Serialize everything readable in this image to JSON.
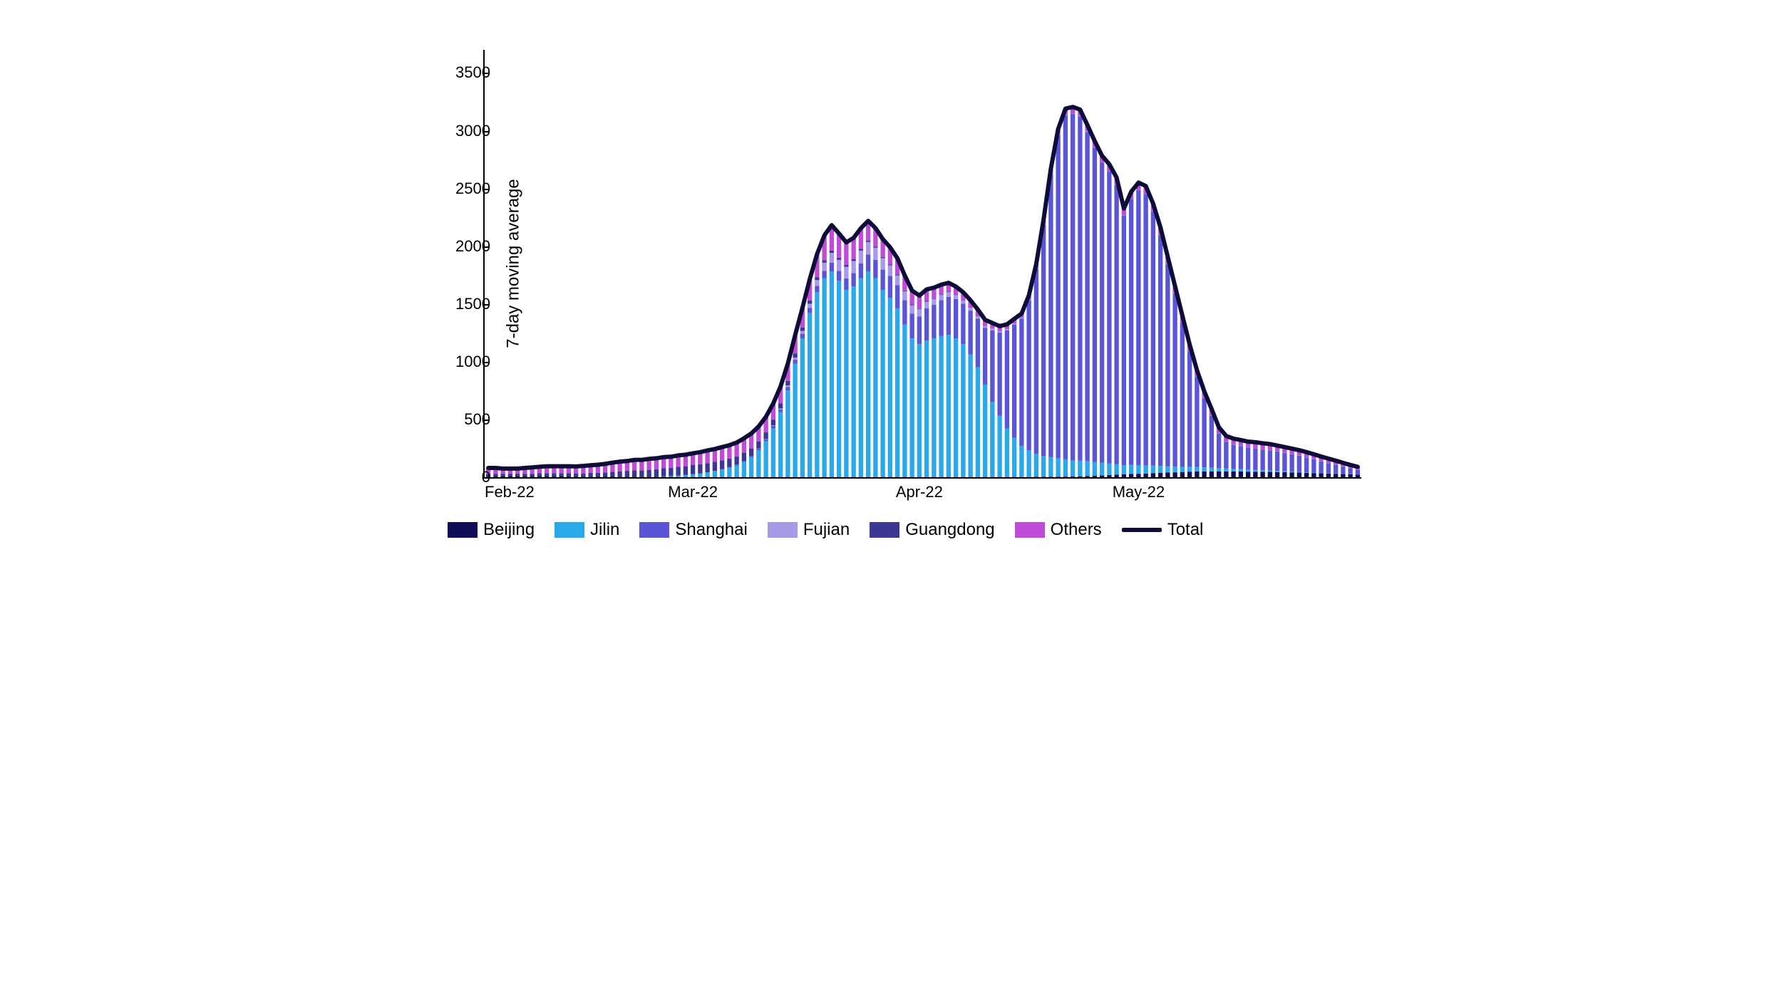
{
  "chart": {
    "type": "stacked-bar-with-line",
    "y_axis_title": "7-day moving average",
    "y_ticks": [
      0,
      500,
      1000,
      1500,
      2000,
      2500,
      3000,
      3500
    ],
    "ylim": [
      0,
      3700
    ],
    "x_labels": [
      {
        "label": "Feb-22",
        "index": 0
      },
      {
        "label": "Mar-22",
        "index": 28
      },
      {
        "label": "Apr-22",
        "index": 59
      },
      {
        "label": "May-22",
        "index": 89
      }
    ],
    "background_color": "#ffffff",
    "axis_color": "#000000",
    "label_fontsize": 22,
    "title_fontsize": 24,
    "bar_width_ratio": 0.62,
    "total_line": {
      "color": "#0e0d3a",
      "width": 6
    },
    "series": [
      {
        "name": "Beijing",
        "color": "#0e0d56"
      },
      {
        "name": "Jilin",
        "color": "#29a8ea"
      },
      {
        "name": "Shanghai",
        "color": "#5a54d8"
      },
      {
        "name": "Fujian",
        "color": "#a89ae8"
      },
      {
        "name": "Guangdong",
        "color": "#3c3792"
      },
      {
        "name": "Others",
        "color": "#c24ad8"
      }
    ],
    "total_legend_label": "Total",
    "data": [
      {
        "Beijing": 10,
        "Jilin": 0,
        "Shanghai": 0,
        "Fujian": 0,
        "Guangdong": 20,
        "Others": 50
      },
      {
        "Beijing": 10,
        "Jilin": 0,
        "Shanghai": 0,
        "Fujian": 0,
        "Guangdong": 20,
        "Others": 50
      },
      {
        "Beijing": 10,
        "Jilin": 0,
        "Shanghai": 0,
        "Fujian": 0,
        "Guangdong": 20,
        "Others": 45
      },
      {
        "Beijing": 10,
        "Jilin": 0,
        "Shanghai": 0,
        "Fujian": 0,
        "Guangdong": 20,
        "Others": 45
      },
      {
        "Beijing": 10,
        "Jilin": 0,
        "Shanghai": 0,
        "Fujian": 0,
        "Guangdong": 20,
        "Others": 45
      },
      {
        "Beijing": 10,
        "Jilin": 0,
        "Shanghai": 0,
        "Fujian": 0,
        "Guangdong": 20,
        "Others": 50
      },
      {
        "Beijing": 10,
        "Jilin": 0,
        "Shanghai": 0,
        "Fujian": 0,
        "Guangdong": 20,
        "Others": 55
      },
      {
        "Beijing": 10,
        "Jilin": 0,
        "Shanghai": 0,
        "Fujian": 0,
        "Guangdong": 25,
        "Others": 55
      },
      {
        "Beijing": 10,
        "Jilin": 0,
        "Shanghai": 0,
        "Fujian": 0,
        "Guangdong": 25,
        "Others": 60
      },
      {
        "Beijing": 10,
        "Jilin": 0,
        "Shanghai": 0,
        "Fujian": 0,
        "Guangdong": 25,
        "Others": 60
      },
      {
        "Beijing": 10,
        "Jilin": 0,
        "Shanghai": 0,
        "Fujian": 0,
        "Guangdong": 25,
        "Others": 60
      },
      {
        "Beijing": 10,
        "Jilin": 0,
        "Shanghai": 0,
        "Fujian": 0,
        "Guangdong": 25,
        "Others": 60
      },
      {
        "Beijing": 8,
        "Jilin": 0,
        "Shanghai": 0,
        "Fujian": 0,
        "Guangdong": 25,
        "Others": 60
      },
      {
        "Beijing": 8,
        "Jilin": 0,
        "Shanghai": 0,
        "Fujian": 0,
        "Guangdong": 25,
        "Others": 65
      },
      {
        "Beijing": 8,
        "Jilin": 0,
        "Shanghai": 0,
        "Fujian": 0,
        "Guangdong": 30,
        "Others": 65
      },
      {
        "Beijing": 8,
        "Jilin": 0,
        "Shanghai": 0,
        "Fujian": 0,
        "Guangdong": 30,
        "Others": 70
      },
      {
        "Beijing": 6,
        "Jilin": 0,
        "Shanghai": 0,
        "Fujian": 0,
        "Guangdong": 35,
        "Others": 75
      },
      {
        "Beijing": 6,
        "Jilin": 0,
        "Shanghai": 0,
        "Fujian": 0,
        "Guangdong": 40,
        "Others": 80
      },
      {
        "Beijing": 5,
        "Jilin": 0,
        "Shanghai": 0,
        "Fujian": 0,
        "Guangdong": 45,
        "Others": 85
      },
      {
        "Beijing": 5,
        "Jilin": 0,
        "Shanghai": 0,
        "Fujian": 0,
        "Guangdong": 50,
        "Others": 85
      },
      {
        "Beijing": 5,
        "Jilin": 0,
        "Shanghai": 0,
        "Fujian": 0,
        "Guangdong": 55,
        "Others": 90
      },
      {
        "Beijing": 5,
        "Jilin": 0,
        "Shanghai": 0,
        "Fujian": 0,
        "Guangdong": 55,
        "Others": 90
      },
      {
        "Beijing": 4,
        "Jilin": 0,
        "Shanghai": 0,
        "Fujian": 0,
        "Guangdong": 60,
        "Others": 95
      },
      {
        "Beijing": 4,
        "Jilin": 0,
        "Shanghai": 0,
        "Fujian": 0,
        "Guangdong": 65,
        "Others": 95
      },
      {
        "Beijing": 4,
        "Jilin": 5,
        "Shanghai": 0,
        "Fujian": 0,
        "Guangdong": 70,
        "Others": 95
      },
      {
        "Beijing": 4,
        "Jilin": 8,
        "Shanghai": 0,
        "Fujian": 0,
        "Guangdong": 70,
        "Others": 95
      },
      {
        "Beijing": 2,
        "Jilin": 12,
        "Shanghai": 0,
        "Fujian": 0,
        "Guangdong": 75,
        "Others": 100
      },
      {
        "Beijing": 2,
        "Jilin": 18,
        "Shanghai": 0,
        "Fujian": 0,
        "Guangdong": 75,
        "Others": 100
      },
      {
        "Beijing": 2,
        "Jilin": 25,
        "Shanghai": 0,
        "Fujian": 0,
        "Guangdong": 80,
        "Others": 100
      },
      {
        "Beijing": 2,
        "Jilin": 30,
        "Shanghai": 0,
        "Fujian": 0,
        "Guangdong": 80,
        "Others": 105
      },
      {
        "Beijing": 2,
        "Jilin": 40,
        "Shanghai": 0,
        "Fujian": 0,
        "Guangdong": 80,
        "Others": 110
      },
      {
        "Beijing": 2,
        "Jilin": 50,
        "Shanghai": 2,
        "Fujian": 0,
        "Guangdong": 80,
        "Others": 110
      },
      {
        "Beijing": 2,
        "Jilin": 65,
        "Shanghai": 4,
        "Fujian": 0,
        "Guangdong": 75,
        "Others": 115
      },
      {
        "Beijing": 2,
        "Jilin": 80,
        "Shanghai": 5,
        "Fujian": 0,
        "Guangdong": 75,
        "Others": 115
      },
      {
        "Beijing": 2,
        "Jilin": 100,
        "Shanghai": 8,
        "Fujian": 0,
        "Guangdong": 70,
        "Others": 120
      },
      {
        "Beijing": 2,
        "Jilin": 130,
        "Shanghai": 10,
        "Fujian": 0,
        "Guangdong": 70,
        "Others": 125
      },
      {
        "Beijing": 2,
        "Jilin": 170,
        "Shanghai": 12,
        "Fujian": 0,
        "Guangdong": 65,
        "Others": 130
      },
      {
        "Beijing": 2,
        "Jilin": 230,
        "Shanghai": 15,
        "Fujian": 2,
        "Guangdong": 60,
        "Others": 130
      },
      {
        "Beijing": 2,
        "Jilin": 310,
        "Shanghai": 18,
        "Fujian": 3,
        "Guangdong": 55,
        "Others": 135
      },
      {
        "Beijing": 2,
        "Jilin": 420,
        "Shanghai": 22,
        "Fujian": 5,
        "Guangdong": 50,
        "Others": 140
      },
      {
        "Beijing": 2,
        "Jilin": 560,
        "Shanghai": 25,
        "Fujian": 8,
        "Guangdong": 45,
        "Others": 145
      },
      {
        "Beijing": 2,
        "Jilin": 750,
        "Shanghai": 30,
        "Fujian": 12,
        "Guangdong": 40,
        "Others": 150
      },
      {
        "Beijing": 2,
        "Jilin": 980,
        "Shanghai": 35,
        "Fujian": 18,
        "Guangdong": 35,
        "Others": 160
      },
      {
        "Beijing": 2,
        "Jilin": 1200,
        "Shanghai": 40,
        "Fujian": 25,
        "Guangdong": 30,
        "Others": 170
      },
      {
        "Beijing": 2,
        "Jilin": 1420,
        "Shanghai": 45,
        "Fujian": 35,
        "Guangdong": 28,
        "Others": 185
      },
      {
        "Beijing": 2,
        "Jilin": 1600,
        "Shanghai": 55,
        "Fujian": 50,
        "Guangdong": 25,
        "Others": 200
      },
      {
        "Beijing": 2,
        "Jilin": 1720,
        "Shanghai": 65,
        "Fujian": 70,
        "Guangdong": 22,
        "Others": 215
      },
      {
        "Beijing": 2,
        "Jilin": 1780,
        "Shanghai": 75,
        "Fujian": 85,
        "Guangdong": 20,
        "Others": 220
      },
      {
        "Beijing": 2,
        "Jilin": 1700,
        "Shanghai": 85,
        "Fujian": 95,
        "Guangdong": 18,
        "Others": 210
      },
      {
        "Beijing": 2,
        "Jilin": 1620,
        "Shanghai": 100,
        "Fujian": 100,
        "Guangdong": 16,
        "Others": 195
      },
      {
        "Beijing": 2,
        "Jilin": 1650,
        "Shanghai": 115,
        "Fujian": 105,
        "Guangdong": 15,
        "Others": 185
      },
      {
        "Beijing": 2,
        "Jilin": 1720,
        "Shanghai": 130,
        "Fujian": 110,
        "Guangdong": 14,
        "Others": 180
      },
      {
        "Beijing": 2,
        "Jilin": 1780,
        "Shanghai": 145,
        "Fujian": 110,
        "Guangdong": 12,
        "Others": 170
      },
      {
        "Beijing": 2,
        "Jilin": 1720,
        "Shanghai": 160,
        "Fujian": 105,
        "Guangdong": 10,
        "Others": 160
      },
      {
        "Beijing": 2,
        "Jilin": 1620,
        "Shanghai": 175,
        "Fujian": 100,
        "Guangdong": 9,
        "Others": 155
      },
      {
        "Beijing": 2,
        "Jilin": 1550,
        "Shanghai": 190,
        "Fujian": 92,
        "Guangdong": 8,
        "Others": 148
      },
      {
        "Beijing": 2,
        "Jilin": 1460,
        "Shanghai": 200,
        "Fujian": 85,
        "Guangdong": 8,
        "Others": 140
      },
      {
        "Beijing": 2,
        "Jilin": 1320,
        "Shanghai": 210,
        "Fujian": 78,
        "Guangdong": 7,
        "Others": 130
      },
      {
        "Beijing": 2,
        "Jilin": 1200,
        "Shanghai": 215,
        "Fujian": 72,
        "Guangdong": 7,
        "Others": 120
      },
      {
        "Beijing": 2,
        "Jilin": 1150,
        "Shanghai": 240,
        "Fujian": 65,
        "Guangdong": 6,
        "Others": 110
      },
      {
        "Beijing": 2,
        "Jilin": 1180,
        "Shanghai": 280,
        "Fujian": 58,
        "Guangdong": 6,
        "Others": 100
      },
      {
        "Beijing": 2,
        "Jilin": 1200,
        "Shanghai": 290,
        "Fujian": 52,
        "Guangdong": 5,
        "Others": 92
      },
      {
        "Beijing": 2,
        "Jilin": 1220,
        "Shanghai": 310,
        "Fujian": 46,
        "Guangdong": 5,
        "Others": 84
      },
      {
        "Beijing": 2,
        "Jilin": 1230,
        "Shanghai": 330,
        "Fujian": 40,
        "Guangdong": 5,
        "Others": 76
      },
      {
        "Beijing": 2,
        "Jilin": 1200,
        "Shanghai": 340,
        "Fujian": 35,
        "Guangdong": 4,
        "Others": 70
      },
      {
        "Beijing": 2,
        "Jilin": 1150,
        "Shanghai": 350,
        "Fujian": 30,
        "Guangdong": 4,
        "Others": 65
      },
      {
        "Beijing": 2,
        "Jilin": 1060,
        "Shanghai": 380,
        "Fujian": 26,
        "Guangdong": 4,
        "Others": 60
      },
      {
        "Beijing": 2,
        "Jilin": 950,
        "Shanghai": 420,
        "Fujian": 22,
        "Guangdong": 3,
        "Others": 55
      },
      {
        "Beijing": 2,
        "Jilin": 800,
        "Shanghai": 490,
        "Fujian": 18,
        "Guangdong": 3,
        "Others": 50
      },
      {
        "Beijing": 2,
        "Jilin": 650,
        "Shanghai": 620,
        "Fujian": 15,
        "Guangdong": 3,
        "Others": 45
      },
      {
        "Beijing": 2,
        "Jilin": 530,
        "Shanghai": 720,
        "Fujian": 12,
        "Guangdong": 2,
        "Others": 42
      },
      {
        "Beijing": 2,
        "Jilin": 420,
        "Shanghai": 850,
        "Fujian": 10,
        "Guangdong": 2,
        "Others": 40
      },
      {
        "Beijing": 2,
        "Jilin": 340,
        "Shanghai": 980,
        "Fujian": 9,
        "Guangdong": 2,
        "Others": 38
      },
      {
        "Beijing": 2,
        "Jilin": 270,
        "Shanghai": 1100,
        "Fujian": 8,
        "Guangdong": 2,
        "Others": 35
      },
      {
        "Beijing": 2,
        "Jilin": 230,
        "Shanghai": 1300,
        "Fujian": 7,
        "Guangdong": 2,
        "Others": 35
      },
      {
        "Beijing": 3,
        "Jilin": 200,
        "Shanghai": 1600,
        "Fujian": 6,
        "Guangdong": 2,
        "Others": 35
      },
      {
        "Beijing": 3,
        "Jilin": 180,
        "Shanghai": 2000,
        "Fujian": 5,
        "Guangdong": 2,
        "Others": 38
      },
      {
        "Beijing": 4,
        "Jilin": 170,
        "Shanghai": 2450,
        "Fujian": 5,
        "Guangdong": 2,
        "Others": 40
      },
      {
        "Beijing": 4,
        "Jilin": 160,
        "Shanghai": 2800,
        "Fujian": 4,
        "Guangdong": 2,
        "Others": 45
      },
      {
        "Beijing": 5,
        "Jilin": 150,
        "Shanghai": 2980,
        "Fujian": 4,
        "Guangdong": 2,
        "Others": 50
      },
      {
        "Beijing": 6,
        "Jilin": 140,
        "Shanghai": 3000,
        "Fujian": 3,
        "Guangdong": 2,
        "Others": 55
      },
      {
        "Beijing": 8,
        "Jilin": 135,
        "Shanghai": 2980,
        "Fujian": 3,
        "Guangdong": 2,
        "Others": 55
      },
      {
        "Beijing": 10,
        "Jilin": 130,
        "Shanghai": 2850,
        "Fujian": 3,
        "Guangdong": 2,
        "Others": 55
      },
      {
        "Beijing": 12,
        "Jilin": 120,
        "Shanghai": 2720,
        "Fujian": 2,
        "Guangdong": 2,
        "Others": 55
      },
      {
        "Beijing": 15,
        "Jilin": 110,
        "Shanghai": 2600,
        "Fujian": 2,
        "Guangdong": 2,
        "Others": 55
      },
      {
        "Beijing": 18,
        "Jilin": 100,
        "Shanghai": 2530,
        "Fujian": 2,
        "Guangdong": 2,
        "Others": 58
      },
      {
        "Beijing": 22,
        "Jilin": 90,
        "Shanghai": 2420,
        "Fujian": 2,
        "Guangdong": 2,
        "Others": 58
      },
      {
        "Beijing": 25,
        "Jilin": 80,
        "Shanghai": 2160,
        "Fujian": 2,
        "Guangdong": 2,
        "Others": 58
      },
      {
        "Beijing": 28,
        "Jilin": 80,
        "Shanghai": 2300,
        "Fujian": 2,
        "Guangdong": 2,
        "Others": 60
      },
      {
        "Beijing": 30,
        "Jilin": 75,
        "Shanghai": 2380,
        "Fujian": 2,
        "Guangdong": 2,
        "Others": 62
      },
      {
        "Beijing": 32,
        "Jilin": 70,
        "Shanghai": 2350,
        "Fujian": 2,
        "Guangdong": 2,
        "Others": 65
      },
      {
        "Beijing": 35,
        "Jilin": 65,
        "Shanghai": 2200,
        "Fujian": 2,
        "Guangdong": 2,
        "Others": 65
      },
      {
        "Beijing": 38,
        "Jilin": 60,
        "Shanghai": 2000,
        "Fujian": 2,
        "Guangdong": 2,
        "Others": 62
      },
      {
        "Beijing": 40,
        "Jilin": 55,
        "Shanghai": 1750,
        "Fujian": 2,
        "Guangdong": 2,
        "Others": 60
      },
      {
        "Beijing": 42,
        "Jilin": 50,
        "Shanghai": 1500,
        "Fujian": 2,
        "Guangdong": 2,
        "Others": 58
      },
      {
        "Beijing": 45,
        "Jilin": 45,
        "Shanghai": 1250,
        "Fujian": 2,
        "Guangdong": 2,
        "Others": 55
      },
      {
        "Beijing": 48,
        "Jilin": 42,
        "Shanghai": 1000,
        "Fujian": 2,
        "Guangdong": 2,
        "Others": 55
      },
      {
        "Beijing": 50,
        "Jilin": 38,
        "Shanghai": 780,
        "Fujian": 2,
        "Guangdong": 2,
        "Others": 55
      },
      {
        "Beijing": 50,
        "Jilin": 35,
        "Shanghai": 600,
        "Fujian": 2,
        "Guangdong": 2,
        "Others": 55
      },
      {
        "Beijing": 50,
        "Jilin": 32,
        "Shanghai": 450,
        "Fujian": 2,
        "Guangdong": 2,
        "Others": 55
      },
      {
        "Beijing": 50,
        "Jilin": 28,
        "Shanghai": 300,
        "Fujian": 2,
        "Guangdong": 2,
        "Others": 50
      },
      {
        "Beijing": 50,
        "Jilin": 25,
        "Shanghai": 230,
        "Fujian": 2,
        "Guangdong": 2,
        "Others": 48
      },
      {
        "Beijing": 50,
        "Jilin": 22,
        "Shanghai": 210,
        "Fujian": 2,
        "Guangdong": 2,
        "Others": 48
      },
      {
        "Beijing": 50,
        "Jilin": 20,
        "Shanghai": 200,
        "Fujian": 2,
        "Guangdong": 2,
        "Others": 48
      },
      {
        "Beijing": 48,
        "Jilin": 18,
        "Shanghai": 190,
        "Fujian": 2,
        "Guangdong": 2,
        "Others": 48
      },
      {
        "Beijing": 48,
        "Jilin": 16,
        "Shanghai": 185,
        "Fujian": 2,
        "Guangdong": 2,
        "Others": 50
      },
      {
        "Beijing": 46,
        "Jilin": 14,
        "Shanghai": 180,
        "Fujian": 2,
        "Guangdong": 2,
        "Others": 50
      },
      {
        "Beijing": 46,
        "Jilin": 12,
        "Shanghai": 175,
        "Fujian": 2,
        "Guangdong": 2,
        "Others": 50
      },
      {
        "Beijing": 44,
        "Jilin": 10,
        "Shanghai": 168,
        "Fujian": 2,
        "Guangdong": 2,
        "Others": 48
      },
      {
        "Beijing": 43,
        "Jilin": 8,
        "Shanghai": 160,
        "Fujian": 2,
        "Guangdong": 2,
        "Others": 46
      },
      {
        "Beijing": 42,
        "Jilin": 7,
        "Shanghai": 150,
        "Fujian": 2,
        "Guangdong": 2,
        "Others": 45
      },
      {
        "Beijing": 40,
        "Jilin": 6,
        "Shanghai": 140,
        "Fujian": 2,
        "Guangdong": 2,
        "Others": 44
      },
      {
        "Beijing": 38,
        "Jilin": 5,
        "Shanghai": 128,
        "Fujian": 2,
        "Guangdong": 2,
        "Others": 42
      },
      {
        "Beijing": 36,
        "Jilin": 4,
        "Shanghai": 115,
        "Fujian": 2,
        "Guangdong": 2,
        "Others": 40
      },
      {
        "Beijing": 34,
        "Jilin": 3,
        "Shanghai": 100,
        "Fujian": 2,
        "Guangdong": 2,
        "Others": 38
      },
      {
        "Beijing": 32,
        "Jilin": 2,
        "Shanghai": 88,
        "Fujian": 2,
        "Guangdong": 2,
        "Others": 35
      },
      {
        "Beijing": 30,
        "Jilin": 2,
        "Shanghai": 75,
        "Fujian": 2,
        "Guangdong": 2,
        "Others": 32
      },
      {
        "Beijing": 28,
        "Jilin": 2,
        "Shanghai": 62,
        "Fujian": 2,
        "Guangdong": 2,
        "Others": 28
      },
      {
        "Beijing": 25,
        "Jilin": 2,
        "Shanghai": 50,
        "Fujian": 2,
        "Guangdong": 2,
        "Others": 25
      },
      {
        "Beijing": 22,
        "Jilin": 2,
        "Shanghai": 40,
        "Fujian": 2,
        "Guangdong": 2,
        "Others": 22
      }
    ]
  }
}
